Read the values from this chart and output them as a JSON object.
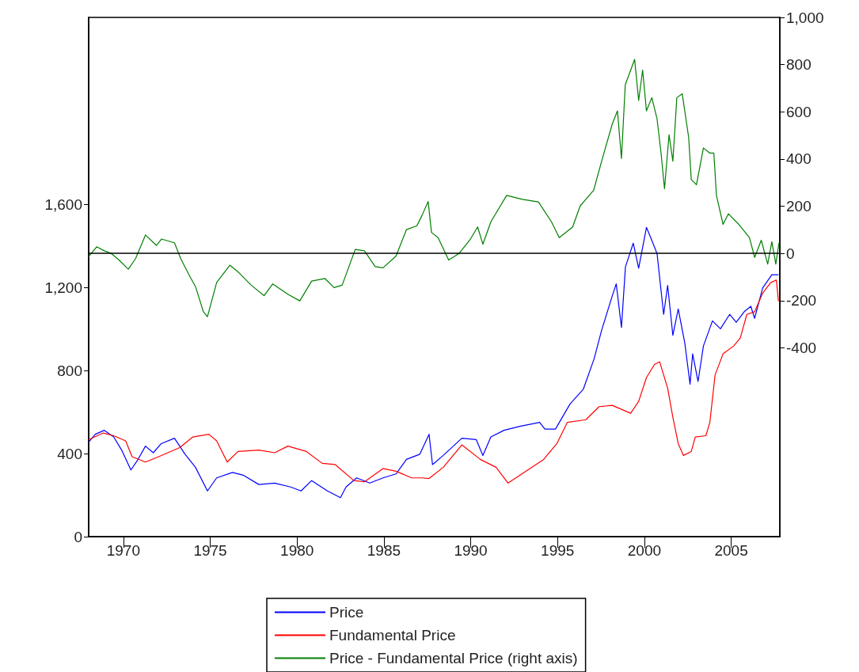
{
  "chart_data": {
    "type": "line",
    "marker": "none",
    "grid": false,
    "legend": "bottom",
    "xlim": [
      1968,
      2007.8
    ],
    "xticks": [
      1970,
      1975,
      1980,
      1985,
      1990,
      1995,
      2000,
      2005
    ],
    "ylim": [
      0,
      2500
    ],
    "yticks": [
      0,
      400,
      800,
      {
        "value": 1200,
        "label": "1,200"
      },
      {
        "value": 1600,
        "label": "1,600"
      }
    ],
    "y2lim": [
      -1200,
      1000
    ],
    "y2ticks": [
      -400,
      -200,
      0,
      200,
      400,
      600,
      800,
      {
        "value": 1000,
        "label": "1,000"
      }
    ],
    "ref_lines": [
      {
        "axis": "y2",
        "value": 0,
        "color": "#000000"
      }
    ],
    "series": [
      {
        "name": "Price",
        "color": "#0000ff",
        "x": [
          1968.0,
          1968.38,
          1968.9,
          1969.44,
          1969.9,
          1970.43,
          1970.8,
          1971.27,
          1971.72,
          1972.18,
          1972.94,
          1973.55,
          1974.15,
          1974.84,
          1975.37,
          1976.28,
          1976.9,
          1977.8,
          1978.71,
          1979.63,
          1980.23,
          1980.84,
          1981.75,
          1982.5,
          1982.82,
          1983.43,
          1984.19,
          1984.95,
          1985.7,
          1986.3,
          1987.07,
          1987.6,
          1987.8,
          1988.42,
          1989.49,
          1990.32,
          1990.7,
          1991.16,
          1991.92,
          1992.83,
          1993.97,
          1994.27,
          1994.88,
          1995.72,
          1996.48,
          1997.1,
          1997.54,
          1998.15,
          1998.38,
          1998.68,
          1998.91,
          1999.36,
          1999.67,
          2000.12,
          2000.43,
          2000.73,
          2001.11,
          2001.34,
          2001.64,
          2001.95,
          2002.33,
          2002.63,
          2002.78,
          2003.09,
          2003.4,
          2003.92,
          2004.38,
          2004.91,
          2005.29,
          2005.75,
          2006.13,
          2006.35,
          2006.81,
          2007.34,
          2007.72
        ],
        "values": [
          455,
          493,
          512,
          480,
          417,
          321,
          366,
          436,
          404,
          448,
          474,
          397,
          334,
          220,
          283,
          309,
          296,
          251,
          258,
          239,
          220,
          270,
          220,
          188,
          239,
          283,
          258,
          283,
          302,
          372,
          397,
          493,
          347,
          391,
          474,
          467,
          391,
          480,
          512,
          531,
          550,
          518,
          518,
          639,
          709,
          855,
          994,
          1159,
          1217,
          1007,
          1299,
          1413,
          1292,
          1489,
          1426,
          1363,
          1070,
          1210,
          969,
          1096,
          931,
          734,
          880,
          747,
          918,
          1039,
          1001,
          1070,
          1032,
          1083,
          1109,
          1051,
          1197,
          1261,
          1261
        ]
      },
      {
        "name": "Fundamental Price",
        "color": "#ff0000",
        "x": [
          1968.0,
          1968.84,
          1969.44,
          1970.13,
          1970.5,
          1971.27,
          1972.03,
          1973.24,
          1974.0,
          1974.92,
          1975.37,
          1975.98,
          1976.6,
          1977.8,
          1978.71,
          1979.47,
          1980.54,
          1981.45,
          1982.2,
          1983.27,
          1983.88,
          1984.95,
          1985.7,
          1986.6,
          1987.2,
          1987.6,
          1988.42,
          1989.49,
          1990.55,
          1991.46,
          1992.15,
          1993.29,
          1994.2,
          1994.96,
          1995.56,
          1996.63,
          1997.39,
          1998.15,
          1999.21,
          1999.67,
          2000.12,
          2000.58,
          2000.88,
          2001.34,
          2001.64,
          2001.95,
          2002.25,
          2002.7,
          2002.93,
          2003.54,
          2003.77,
          2004.07,
          2004.53,
          2005.14,
          2005.52,
          2005.9,
          2006.35,
          2006.81,
          2007.27,
          2007.6,
          2007.72
        ],
        "values": [
          467,
          499,
          486,
          461,
          385,
          359,
          385,
          429,
          480,
          493,
          461,
          359,
          410,
          417,
          404,
          436,
          410,
          353,
          347,
          270,
          264,
          328,
          315,
          283,
          283,
          280,
          334,
          442,
          372,
          334,
          258,
          321,
          372,
          448,
          550,
          563,
          626,
          632,
          594,
          651,
          766,
          829,
          842,
          715,
          575,
          448,
          391,
          410,
          480,
          486,
          550,
          778,
          880,
          918,
          956,
          1070,
          1083,
          1172,
          1223,
          1236,
          1134
        ]
      },
      {
        "name": "Price - Fundamental Price (right axis)",
        "color": "#007f00",
        "axis": "y2",
        "x": [
          1968.0,
          1968.46,
          1968.9,
          1969.3,
          1969.75,
          1970.28,
          1970.7,
          1971.27,
          1971.9,
          1972.2,
          1972.94,
          1973.3,
          1973.85,
          1974.15,
          1974.6,
          1974.84,
          1975.37,
          1976.13,
          1976.6,
          1977.35,
          1978.1,
          1978.6,
          1979.47,
          1980.16,
          1980.84,
          1981.6,
          1982.13,
          1982.6,
          1983.35,
          1983.88,
          1984.5,
          1984.95,
          1985.7,
          1986.3,
          1986.9,
          1987.2,
          1987.55,
          1987.74,
          1988.12,
          1988.73,
          1989.33,
          1989.94,
          1990.4,
          1990.7,
          1991.16,
          1992.07,
          1992.98,
          1993.9,
          1994.65,
          1995.1,
          1995.87,
          1996.3,
          1997.08,
          1997.54,
          1998.15,
          1998.45,
          1998.68,
          1998.9,
          1999.44,
          1999.67,
          1999.9,
          2000.12,
          2000.43,
          2000.73,
          2000.96,
          2001.16,
          2001.42,
          2001.64,
          2001.87,
          2002.18,
          2002.55,
          2002.7,
          2003.0,
          2003.4,
          2003.77,
          2004.0,
          2004.15,
          2004.53,
          2004.84,
          2005.44,
          2006.05,
          2006.35,
          2006.73,
          2007.1,
          2007.34,
          2007.57,
          2007.75
        ],
        "values": [
          -13,
          28,
          11,
          0,
          -28,
          -67,
          -22,
          78,
          34,
          61,
          45,
          -22,
          -101,
          -140,
          -246,
          -268,
          -123,
          -50,
          -78,
          -134,
          -179,
          -129,
          -173,
          -201,
          -117,
          -106,
          -145,
          -134,
          17,
          11,
          -56,
          -61,
          -11,
          101,
          117,
          162,
          220,
          89,
          67,
          -28,
          0,
          56,
          112,
          39,
          134,
          246,
          229,
          218,
          134,
          67,
          112,
          201,
          268,
          391,
          548,
          604,
          402,
          715,
          822,
          648,
          777,
          604,
          660,
          570,
          425,
          274,
          503,
          391,
          660,
          676,
          492,
          313,
          291,
          447,
          425,
          425,
          246,
          123,
          168,
          123,
          67,
          -17,
          56,
          -45,
          50,
          -45,
          45
        ]
      }
    ]
  }
}
